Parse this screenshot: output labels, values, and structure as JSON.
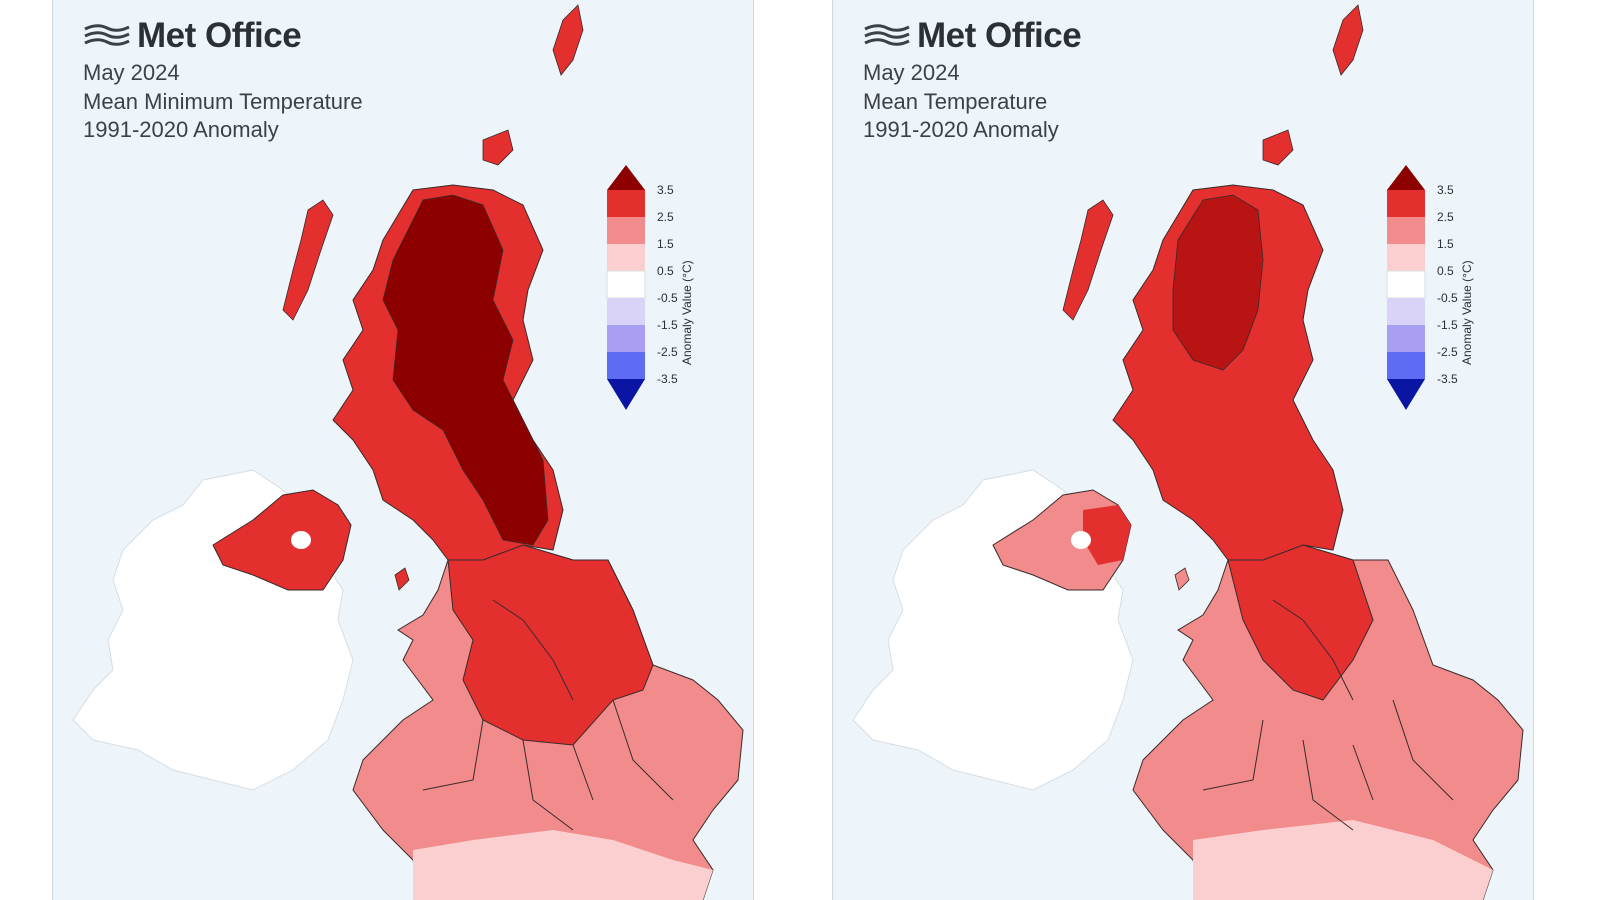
{
  "panels": [
    {
      "logo_text": "Met Office",
      "month": "May 2024",
      "variable": "Mean Minimum Temperature",
      "anomaly_period": "1991-2020 Anomaly"
    },
    {
      "logo_text": "Met Office",
      "month": "May 2024",
      "variable": "Mean Temperature",
      "anomaly_period": "1991-2020 Anomaly"
    }
  ],
  "legend": {
    "title": "Anomaly Value (°C)",
    "ticks": [
      "3.5",
      "2.5",
      "1.5",
      "0.5",
      "-0.5",
      "-1.5",
      "-2.5",
      "-3.5"
    ],
    "colors": {
      "above_3_5": "#8c0000",
      "2_5_to_3_5": "#e3302f",
      "1_5_to_2_5": "#f28b8b",
      "0_5_to_1_5": "#fbcfd0",
      "neutral": "#ffffff",
      "-1_5_to_-0_5": "#d9d3f8",
      "-2_5_to_-1_5": "#a89ff2",
      "-3_5_to_-2_5": "#5d6cf2",
      "below_-3_5": "#0a16a3"
    }
  },
  "map_colors": {
    "sea": "#eef5fa",
    "ireland": "#ffffff",
    "boundary": "#3a2a2a"
  }
}
